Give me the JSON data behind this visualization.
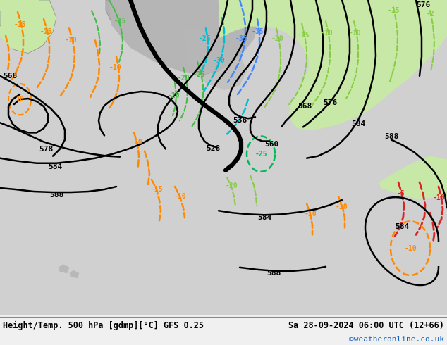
{
  "title_left": "Height/Temp. 500 hPa [gdmp][°C] GFS 0.25",
  "title_right": "Sa 28-09-2024 06:00 UTC (12+66)",
  "credit": "©weatheronline.co.uk",
  "figsize": [
    6.34,
    4.9
  ],
  "dpi": 100,
  "credit_color": "#1565C0",
  "bg_ocean": "#d8d8d8",
  "bg_land_green": "#c8e8b0",
  "bg_land_gray": "#b4b4b4",
  "footer_color": "#f0f0f0"
}
